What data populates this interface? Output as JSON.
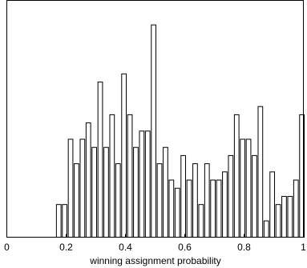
{
  "chart_data": {
    "type": "bar",
    "title": "",
    "xlabel": "winning assignment probability",
    "ylabel": "",
    "xlim": [
      0,
      1
    ],
    "xticks": [
      0,
      0.2,
      0.4,
      0.6,
      0.8,
      1
    ],
    "xtick_labels": [
      "0",
      "0.2",
      "0.4",
      "0.6",
      "0.8",
      "1"
    ],
    "ylim": [
      0,
      29
    ],
    "grid": false,
    "bar_width": 0.0155,
    "bar_fill": "#ffffff",
    "bar_stroke": "#000000",
    "series": [
      {
        "x": [
          0.175,
          0.195,
          0.215,
          0.235,
          0.255,
          0.275,
          0.295,
          0.315,
          0.335,
          0.355,
          0.375,
          0.395,
          0.415,
          0.435,
          0.455,
          0.475,
          0.495,
          0.515,
          0.535,
          0.555,
          0.575,
          0.595,
          0.615,
          0.635,
          0.655,
          0.675,
          0.695,
          0.715,
          0.735,
          0.755,
          0.775,
          0.795,
          0.815,
          0.835,
          0.855,
          0.875,
          0.895,
          0.915,
          0.935,
          0.955,
          0.975,
          0.995
        ],
        "values": [
          4,
          4,
          12,
          9,
          12,
          14,
          11,
          19,
          11,
          15,
          9,
          20,
          15,
          11,
          13,
          13,
          26,
          9,
          11,
          7,
          6,
          10,
          7,
          9,
          4,
          9,
          7,
          7,
          8,
          10,
          15,
          12,
          12,
          10,
          16,
          2,
          8,
          4,
          5,
          5,
          7,
          15
        ]
      }
    ]
  }
}
